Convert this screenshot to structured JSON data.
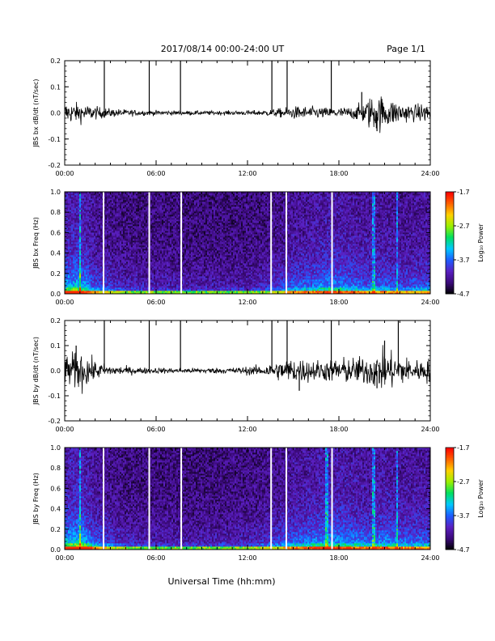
{
  "header": {
    "date_range": "2017/08/14  00:00-24:00 UT",
    "page": "Page 1/1"
  },
  "footer": {
    "xlabel": "Universal Time (hh:mm)"
  },
  "colors": {
    "trace": "#000000",
    "gap_line": "#ffffff",
    "spectrogram_colormap": [
      "#000000",
      "#3b0a7a",
      "#5a1fc0",
      "#1e5cff",
      "#00c8ff",
      "#00e060",
      "#9cf000",
      "#ffd000",
      "#ff6000",
      "#ff0000"
    ]
  },
  "chart_data": [
    {
      "type": "line",
      "id": "bx-dbdt",
      "ylabel": "JBS bx dB/dt (nT/sec)",
      "ylim": [
        -0.2,
        0.2
      ],
      "yticks": [
        -0.2,
        -0.1,
        0.0,
        0.1,
        0.2
      ],
      "ytick_labels": [
        "-0.2",
        "-0.1",
        "0.0",
        "0.1",
        "0.2"
      ],
      "xlim": [
        0,
        24
      ],
      "xticks": [
        0,
        6,
        12,
        18,
        24
      ],
      "xtick_labels": [
        "00:00",
        "06:00",
        "12:00",
        "18:00",
        "24:00"
      ],
      "x_units": "hours UT",
      "noise_profile": {
        "x": [
          0,
          1,
          2,
          3,
          5,
          8,
          11,
          13,
          14,
          15,
          16,
          17,
          18,
          19,
          19.6,
          20,
          20.5,
          21,
          22,
          23,
          24
        ],
        "amplitude": [
          0.02,
          0.018,
          0.012,
          0.008,
          0.005,
          0.004,
          0.004,
          0.005,
          0.008,
          0.012,
          0.012,
          0.01,
          0.01,
          0.012,
          0.02,
          0.03,
          0.035,
          0.03,
          0.02,
          0.015,
          0.02
        ]
      },
      "spikes": [
        {
          "x": 2.6,
          "y": 0.2
        },
        {
          "x": 5.55,
          "y": 0.2
        },
        {
          "x": 7.6,
          "y": 0.2
        },
        {
          "x": 13.6,
          "y": 0.2
        },
        {
          "x": 14.6,
          "y": 0.2
        },
        {
          "x": 17.5,
          "y": 0.2
        },
        {
          "x": 19.5,
          "y": 0.08
        },
        {
          "x": 20.5,
          "y": -0.07
        }
      ]
    },
    {
      "type": "heatmap",
      "id": "bx-spectrogram",
      "ylabel": "JBS bx Freq (Hz)",
      "ylim": [
        0.0,
        1.0
      ],
      "yticks": [
        0.0,
        0.2,
        0.4,
        0.6,
        0.8,
        1.0
      ],
      "ytick_labels": [
        "0.0",
        "0.2",
        "0.4",
        "0.6",
        "0.8",
        "1.0"
      ],
      "xlim": [
        0,
        24
      ],
      "xticks": [
        0,
        6,
        12,
        18,
        24
      ],
      "xtick_labels": [
        "00:00",
        "06:00",
        "12:00",
        "18:00",
        "24:00"
      ],
      "colorbar": {
        "range": [
          -4.7,
          -1.7
        ],
        "ticks": [
          -4.7,
          -3.7,
          -2.7,
          -1.7
        ],
        "tick_labels": [
          "-4.7",
          "-3.7",
          "-2.7",
          "-1.7"
        ],
        "label": "Log₁₀ Power"
      },
      "data_gaps_hours": [
        2.55,
        5.55,
        7.65,
        13.55,
        14.55,
        17.55
      ],
      "bright_stripes_hours": [
        1.0,
        20.3,
        21.8
      ],
      "activity_profile": {
        "x": [
          0,
          1,
          2,
          4,
          8,
          12,
          14,
          15,
          16,
          17,
          18,
          20,
          21,
          22,
          24
        ],
        "level": [
          0.8,
          0.9,
          0.5,
          0.3,
          0.25,
          0.25,
          0.4,
          0.55,
          0.6,
          0.7,
          0.7,
          0.55,
          0.6,
          0.5,
          0.55
        ]
      }
    },
    {
      "type": "line",
      "id": "by-dbdt",
      "ylabel": "JBS by dB/dt (nT/sec)",
      "ylim": [
        -0.2,
        0.2
      ],
      "yticks": [
        -0.2,
        -0.1,
        0.0,
        0.1,
        0.2
      ],
      "ytick_labels": [
        "-0.2",
        "-0.1",
        "0.0",
        "0.1",
        "0.2"
      ],
      "xlim": [
        0,
        24
      ],
      "xticks": [
        0,
        6,
        12,
        18,
        24
      ],
      "xtick_labels": [
        "00:00",
        "06:00",
        "12:00",
        "18:00",
        "24:00"
      ],
      "x_units": "hours UT",
      "noise_profile": {
        "x": [
          0,
          0.5,
          1,
          2,
          3,
          5,
          8,
          11,
          13,
          14,
          15,
          16,
          17,
          18,
          19,
          20,
          21,
          22,
          23,
          24
        ],
        "amplitude": [
          0.025,
          0.035,
          0.04,
          0.018,
          0.01,
          0.006,
          0.005,
          0.006,
          0.01,
          0.018,
          0.025,
          0.022,
          0.02,
          0.025,
          0.025,
          0.03,
          0.04,
          0.03,
          0.02,
          0.025
        ]
      },
      "spikes": [
        {
          "x": 0.75,
          "y": 0.1
        },
        {
          "x": 2.6,
          "y": 0.2
        },
        {
          "x": 5.55,
          "y": 0.2
        },
        {
          "x": 7.6,
          "y": 0.2
        },
        {
          "x": 13.6,
          "y": 0.2
        },
        {
          "x": 14.6,
          "y": 0.2
        },
        {
          "x": 17.5,
          "y": 0.2
        },
        {
          "x": 21.0,
          "y": 0.12
        },
        {
          "x": 21.9,
          "y": 0.2
        },
        {
          "x": 15.4,
          "y": -0.08
        },
        {
          "x": 20.5,
          "y": -0.07
        }
      ]
    },
    {
      "type": "heatmap",
      "id": "by-spectrogram",
      "ylabel": "JBS by Freq (Hz)",
      "ylim": [
        0.0,
        1.0
      ],
      "yticks": [
        0.0,
        0.2,
        0.4,
        0.6,
        0.8,
        1.0
      ],
      "ytick_labels": [
        "0.0",
        "0.2",
        "0.4",
        "0.6",
        "0.8",
        "1.0"
      ],
      "xlim": [
        0,
        24
      ],
      "xticks": [
        0,
        6,
        12,
        18,
        24
      ],
      "xtick_labels": [
        "00:00",
        "06:00",
        "12:00",
        "18:00",
        "24:00"
      ],
      "colorbar": {
        "range": [
          -4.7,
          -1.7
        ],
        "ticks": [
          -4.7,
          -3.7,
          -2.7,
          -1.7
        ],
        "tick_labels": [
          "-4.7",
          "-3.7",
          "-2.7",
          "-1.7"
        ],
        "label": "Log₁₀ Power"
      },
      "data_gaps_hours": [
        2.55,
        5.55,
        7.65,
        13.55,
        14.55,
        17.55
      ],
      "bright_stripes_hours": [
        1.0,
        17.2,
        20.3,
        21.8
      ],
      "activity_profile": {
        "x": [
          0,
          1,
          2,
          4,
          8,
          12,
          14,
          15,
          16,
          17,
          18,
          20,
          21,
          22,
          24
        ],
        "level": [
          0.85,
          0.95,
          0.55,
          0.3,
          0.25,
          0.3,
          0.45,
          0.6,
          0.65,
          0.75,
          0.75,
          0.6,
          0.7,
          0.6,
          0.6
        ]
      }
    }
  ]
}
